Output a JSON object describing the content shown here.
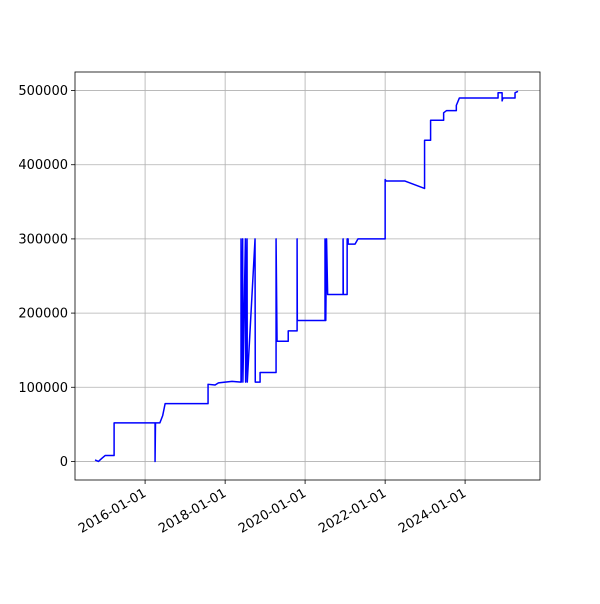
{
  "chart_data": {
    "type": "line",
    "x": [
      "2014-10-01",
      "2014-11-01",
      "2014-12-01",
      "2015-01-01",
      "2015-03-24",
      "2015-03-24",
      "2016-04-01",
      "2016-04-01",
      "2016-04-05",
      "2016-05-15",
      "2016-06-10",
      "2016-07-02",
      "2017-07-29",
      "2017-07-29",
      "2017-10-01",
      "2017-11-01",
      "2018-03-05",
      "2018-05-26",
      "2018-05-26",
      "2018-05-28",
      "2018-06-10",
      "2018-06-12",
      "2018-07-05",
      "2018-07-07",
      "2018-07-20",
      "2018-07-22",
      "2018-10-01",
      "2018-10-03",
      "2018-11-16",
      "2018-11-16",
      "2019-04-11",
      "2019-04-11",
      "2019-04-20",
      "2019-07-31",
      "2019-07-31",
      "2019-10-20",
      "2019-10-20",
      "2019-10-22",
      "2020-07-01",
      "2020-07-01",
      "2020-07-08",
      "2020-07-15",
      "2020-07-25",
      "2020-12-13",
      "2020-12-13",
      "2020-12-15",
      "2021-01-19",
      "2021-01-19",
      "2021-01-28",
      "2021-01-28",
      "2021-04-01",
      "2021-04-28",
      "2022-01-01",
      "2022-01-01",
      "2022-01-10",
      "2022-07-01",
      "2022-12-27",
      "2022-12-27",
      "2023-02-20",
      "2023-02-20",
      "2023-06-19",
      "2023-06-19",
      "2023-07-16",
      "2023-10-13",
      "2023-10-13",
      "2023-11-10",
      "2024-10-28",
      "2024-10-28",
      "2024-12-04",
      "2024-12-04",
      "2024-12-12",
      "2025-04-01",
      "2025-04-01",
      "2025-04-28"
    ],
    "series": [
      {
        "color": "#0000ff",
        "values": [
          2000,
          0,
          4000,
          8000,
          8000,
          52000,
          52000,
          0,
          52000,
          52000,
          62000,
          78000,
          78000,
          104000,
          103000,
          106000,
          108000,
          107000,
          300000,
          107000,
          300000,
          107000,
          300000,
          107000,
          300000,
          107000,
          300000,
          107000,
          107000,
          120000,
          120000,
          300000,
          162000,
          162000,
          176000,
          176000,
          300000,
          190000,
          190000,
          300000,
          190000,
          300000,
          225000,
          225000,
          300000,
          225000,
          225000,
          300000,
          300000,
          293000,
          293000,
          300000,
          300000,
          380000,
          378000,
          378000,
          368000,
          433000,
          433000,
          460000,
          460000,
          470000,
          473000,
          473000,
          480000,
          490000,
          490000,
          497000,
          497000,
          486000,
          490000,
          490000,
          497000,
          499000
        ]
      }
    ],
    "xlim": [
      "2014-04-01",
      "2025-11-15"
    ],
    "xticks": [
      "2016-01-01",
      "2018-01-01",
      "2020-01-01",
      "2022-01-01",
      "2024-01-01"
    ],
    "ylim": [
      -25000,
      525000
    ],
    "yticks": [
      0,
      100000,
      200000,
      300000,
      400000,
      500000
    ],
    "grid": true
  }
}
